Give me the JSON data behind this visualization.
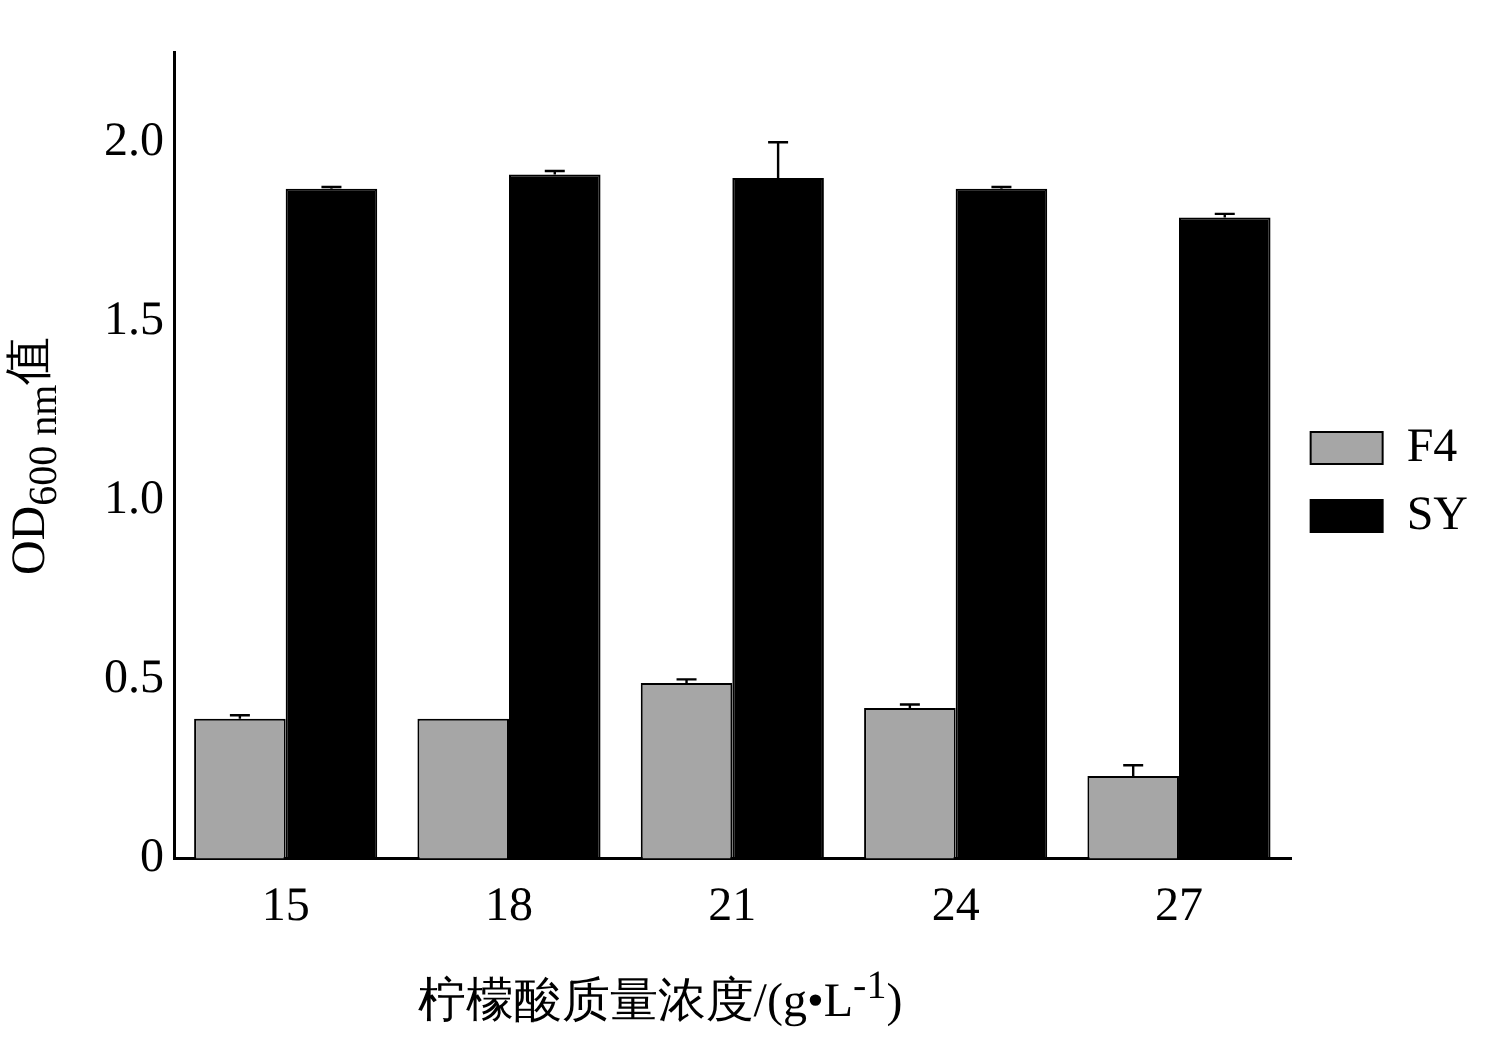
{
  "chart_data": {
    "type": "bar",
    "xlabel": "柠檬酸质量浓度/(g•L$^{-1}$)",
    "ylabel": "OD$_{600 nm}$值",
    "categories": [
      "15",
      "18",
      "21",
      "24",
      "27"
    ],
    "series": [
      {
        "name": "F4",
        "color": "#a6a6a6",
        "values": [
          0.39,
          0.39,
          0.49,
          0.42,
          0.23
        ],
        "errors": [
          [
            0.39,
            0.4
          ],
          null,
          [
            0.49,
            0.5
          ],
          [
            0.42,
            0.43
          ],
          [
            0.23,
            0.26
          ]
        ]
      },
      {
        "name": "SY",
        "color": "#000000",
        "values": [
          1.87,
          1.91,
          1.9,
          1.87,
          1.79
        ],
        "errors": [
          [
            1.87,
            1.875
          ],
          [
            1.91,
            1.92
          ],
          [
            1.9,
            2.0
          ],
          [
            1.87,
            1.875
          ],
          [
            1.79,
            1.8
          ]
        ]
      }
    ],
    "ylim": [
      0,
      2.25
    ],
    "yticks": [
      0,
      {
        "value": 0.5,
        "label": "0.5"
      },
      {
        "value": 1,
        "label": "1.0"
      },
      {
        "value": 1.5,
        "label": "1.5"
      },
      {
        "value": 2,
        "label": "2.0"
      }
    ],
    "grid": false,
    "legend": "right"
  }
}
